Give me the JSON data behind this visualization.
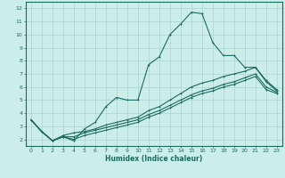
{
  "xlabel": "Humidex (Indice chaleur)",
  "bg_color": "#cceee8",
  "grid_color": "#aad4ce",
  "line_color": "#1a6b60",
  "spine_color": "#1a6b60",
  "xlim": [
    -0.5,
    23.5
  ],
  "ylim": [
    1.5,
    12.5
  ],
  "xticks": [
    0,
    1,
    2,
    3,
    4,
    5,
    6,
    7,
    8,
    9,
    10,
    11,
    12,
    13,
    14,
    15,
    16,
    17,
    18,
    19,
    20,
    21,
    22,
    23
  ],
  "yticks": [
    2,
    3,
    4,
    5,
    6,
    7,
    8,
    9,
    10,
    11,
    12
  ],
  "series": [
    {
      "x": [
        0,
        1,
        2,
        3,
        4,
        5,
        6,
        7,
        8,
        9,
        10,
        11,
        12,
        13,
        14,
        15,
        16,
        17,
        18,
        19,
        20,
        21,
        22,
        23
      ],
      "y": [
        3.5,
        2.6,
        1.9,
        2.2,
        1.9,
        2.8,
        3.3,
        4.5,
        5.2,
        5.0,
        5.0,
        7.7,
        8.3,
        10.0,
        10.8,
        11.7,
        11.6,
        9.4,
        8.4,
        8.4,
        7.5,
        7.5,
        6.4,
        5.7
      ]
    },
    {
      "x": [
        0,
        1,
        2,
        3,
        4,
        5,
        6,
        7,
        8,
        9,
        10,
        11,
        12,
        13,
        14,
        15,
        16,
        17,
        18,
        19,
        20,
        21,
        22,
        23
      ],
      "y": [
        3.5,
        2.6,
        1.9,
        2.3,
        2.5,
        2.6,
        2.8,
        3.1,
        3.3,
        3.5,
        3.7,
        4.2,
        4.5,
        5.0,
        5.5,
        6.0,
        6.3,
        6.5,
        6.8,
        7.0,
        7.2,
        7.5,
        6.5,
        5.8
      ]
    },
    {
      "x": [
        0,
        1,
        2,
        3,
        4,
        5,
        6,
        7,
        8,
        9,
        10,
        11,
        12,
        13,
        14,
        15,
        16,
        17,
        18,
        19,
        20,
        21,
        22,
        23
      ],
      "y": [
        3.5,
        2.6,
        1.9,
        2.2,
        2.2,
        2.5,
        2.7,
        2.9,
        3.1,
        3.3,
        3.5,
        3.9,
        4.2,
        4.6,
        5.0,
        5.4,
        5.7,
        5.9,
        6.2,
        6.4,
        6.7,
        7.0,
        6.0,
        5.6
      ]
    },
    {
      "x": [
        0,
        1,
        2,
        3,
        4,
        5,
        6,
        7,
        8,
        9,
        10,
        11,
        12,
        13,
        14,
        15,
        16,
        17,
        18,
        19,
        20,
        21,
        22,
        23
      ],
      "y": [
        3.5,
        2.6,
        1.9,
        2.2,
        2.0,
        2.3,
        2.5,
        2.7,
        2.9,
        3.1,
        3.3,
        3.7,
        4.0,
        4.4,
        4.8,
        5.2,
        5.5,
        5.7,
        6.0,
        6.2,
        6.5,
        6.8,
        5.8,
        5.5
      ]
    }
  ]
}
